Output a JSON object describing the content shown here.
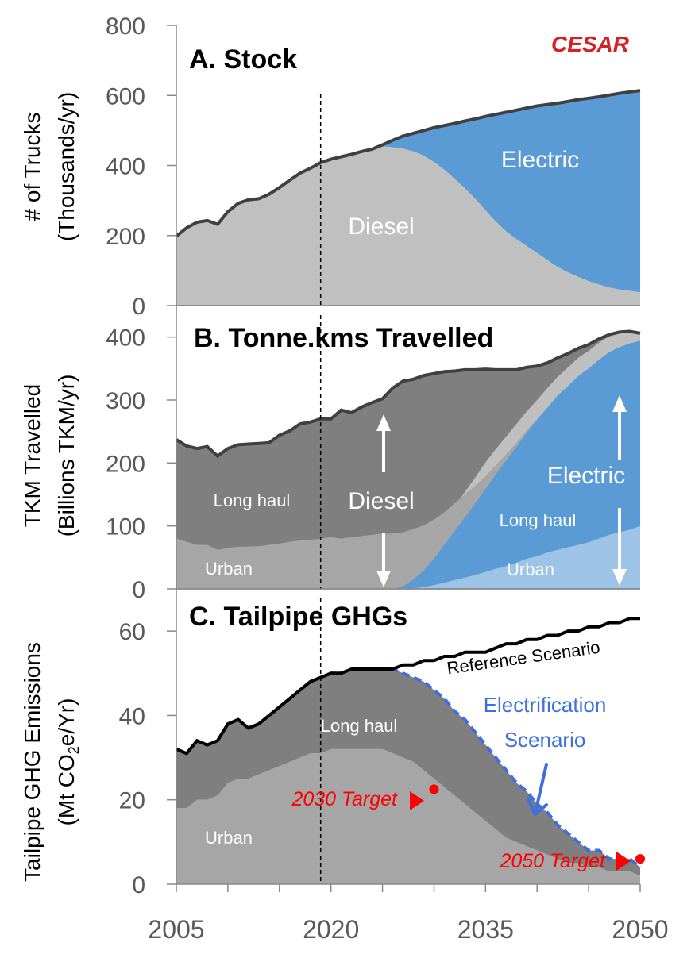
{
  "chart_data": [
    {
      "panel": "A",
      "type": "area",
      "title": "A. Stock",
      "ylabel_line1": "# of Trucks",
      "ylabel_line2": "(Thousands/yr)",
      "ylim": [
        0,
        800
      ],
      "yticks": [
        "0",
        "200",
        "400",
        "600",
        "800"
      ],
      "x": [
        2005,
        2006,
        2007,
        2008,
        2009,
        2010,
        2011,
        2012,
        2013,
        2014,
        2015,
        2016,
        2017,
        2018,
        2019,
        2020,
        2021,
        2022,
        2023,
        2024,
        2025,
        2026,
        2027,
        2028,
        2029,
        2030,
        2031,
        2032,
        2033,
        2034,
        2035,
        2036,
        2037,
        2038,
        2039,
        2040,
        2041,
        2042,
        2043,
        2044,
        2045,
        2046,
        2047,
        2048,
        2049,
        2050
      ],
      "series": [
        {
          "name": "Diesel",
          "color": "#c0c0c0",
          "values": [
            198,
            222,
            238,
            243,
            232,
            268,
            292,
            302,
            305,
            318,
            337,
            358,
            378,
            392,
            408,
            418,
            425,
            432,
            440,
            447,
            455,
            452,
            448,
            440,
            428,
            410,
            388,
            362,
            335,
            305,
            272,
            240,
            212,
            190,
            170,
            150,
            130,
            110,
            95,
            82,
            70,
            60,
            52,
            46,
            42,
            38
          ]
        },
        {
          "name": "Electric",
          "color": "#5b9bd5",
          "values": [
            0,
            0,
            0,
            0,
            0,
            0,
            0,
            0,
            0,
            0,
            0,
            0,
            0,
            0,
            0,
            0,
            0,
            0,
            0,
            0,
            4,
            20,
            36,
            52,
            72,
            98,
            126,
            158,
            192,
            228,
            268,
            306,
            340,
            368,
            394,
            420,
            444,
            468,
            488,
            506,
            522,
            536,
            549,
            560,
            568,
            576
          ]
        }
      ],
      "total_line_color": "#404040",
      "annotations": [
        "Diesel",
        "Electric"
      ]
    },
    {
      "panel": "B",
      "type": "area",
      "title": "B. Tonne.kms Travelled",
      "ylabel_line1": "TKM Travelled",
      "ylabel_line2": "(Billions TKM/yr)",
      "ylim": [
        0,
        450
      ],
      "yticks": [
        "0",
        "100",
        "200",
        "300",
        "400"
      ],
      "x": [
        2005,
        2006,
        2007,
        2008,
        2009,
        2010,
        2011,
        2012,
        2013,
        2014,
        2015,
        2016,
        2017,
        2018,
        2019,
        2020,
        2021,
        2022,
        2023,
        2024,
        2025,
        2026,
        2027,
        2028,
        2029,
        2030,
        2031,
        2032,
        2033,
        2034,
        2035,
        2036,
        2037,
        2038,
        2039,
        2040,
        2041,
        2042,
        2043,
        2044,
        2045,
        2046,
        2047,
        2048,
        2049,
        2050
      ],
      "series": [
        {
          "name": "Diesel Urban",
          "color": "#a6a6a6",
          "values": [
            80,
            75,
            70,
            70,
            62,
            65,
            67,
            67,
            68,
            70,
            72,
            75,
            77,
            78,
            80,
            82,
            80,
            82,
            84,
            86,
            88,
            88,
            86,
            80,
            72,
            62,
            52,
            44,
            36,
            28,
            20,
            14,
            10,
            6,
            4,
            2,
            0,
            0,
            0,
            0,
            0,
            0,
            0,
            0,
            0,
            0
          ]
        },
        {
          "name": "Diesel Long haul",
          "color": "#7f7f7f",
          "values": [
            157,
            152,
            153,
            156,
            149,
            158,
            162,
            163,
            163,
            162,
            172,
            176,
            185,
            187,
            190,
            188,
            204,
            198,
            205,
            210,
            214,
            226,
            230,
            220,
            212,
            200,
            187,
            172,
            158,
            143,
            128,
            112,
            96,
            80,
            66,
            52,
            40,
            30,
            22,
            15,
            10,
            6,
            3,
            2,
            1,
            0
          ]
        },
        {
          "name": "Electric Urban",
          "color": "#9dc3e6",
          "values": [
            0,
            0,
            0,
            0,
            0,
            0,
            0,
            0,
            0,
            0,
            0,
            0,
            0,
            0,
            0,
            0,
            0,
            0,
            0,
            0,
            0,
            0,
            0,
            1,
            3,
            6,
            10,
            14,
            18,
            22,
            27,
            32,
            36,
            42,
            48,
            52,
            58,
            62,
            66,
            70,
            74,
            80,
            86,
            90,
            94,
            100
          ]
        },
        {
          "name": "Electric Long haul",
          "color": "#5b9bd5",
          "values": [
            0,
            0,
            0,
            0,
            0,
            0,
            0,
            0,
            0,
            0,
            0,
            0,
            0,
            0,
            0,
            0,
            0,
            0,
            0,
            0,
            0,
            0,
            4,
            14,
            26,
            42,
            60,
            78,
            96,
            114,
            132,
            150,
            168,
            184,
            200,
            216,
            230,
            245,
            256,
            268,
            276,
            284,
            290,
            294,
            296,
            294
          ]
        },
        {
          "name": "Transition band",
          "color": "#bfbfbf",
          "values": [
            0,
            0,
            0,
            0,
            0,
            0,
            0,
            0,
            0,
            0,
            0,
            0,
            0,
            0,
            0,
            0,
            0,
            0,
            0,
            0,
            0,
            5,
            10,
            18,
            26,
            32,
            36,
            38,
            40,
            41,
            42,
            40,
            38,
            36,
            34,
            32,
            31,
            30,
            30,
            29,
            28,
            27,
            25,
            22,
            18,
            12
          ]
        }
      ],
      "totals": [
        237,
        227,
        223,
        226,
        211,
        223,
        229,
        230,
        231,
        232,
        244,
        251,
        262,
        265,
        270,
        270,
        284,
        280,
        289,
        296,
        302,
        319,
        330,
        333,
        339,
        342,
        345,
        346,
        348,
        348,
        349,
        348,
        348,
        348,
        352,
        354,
        359,
        367,
        374,
        382,
        388,
        397,
        404,
        408,
        409,
        406
      ],
      "total_line_color": "#404040",
      "annotations": [
        "Long haul",
        "Urban",
        "Diesel",
        "Electric",
        "Long haul",
        "Urban"
      ]
    },
    {
      "panel": "C",
      "type": "area",
      "title": "C. Tailpipe GHGs",
      "ylabel_line1": "Tailpipe GHG Emissions",
      "ylabel_line2_parts": [
        "(Mt CO",
        "2",
        "e/Yr)"
      ],
      "ylim": [
        0,
        70
      ],
      "yticks": [
        "0",
        "20",
        "40",
        "60"
      ],
      "xticks": [
        "2005",
        "2020",
        "2035",
        "2050"
      ],
      "x": [
        2005,
        2006,
        2007,
        2008,
        2009,
        2010,
        2011,
        2012,
        2013,
        2014,
        2015,
        2016,
        2017,
        2018,
        2019,
        2020,
        2021,
        2022,
        2023,
        2024,
        2025,
        2026,
        2027,
        2028,
        2029,
        2030,
        2031,
        2032,
        2033,
        2034,
        2035,
        2036,
        2037,
        2038,
        2039,
        2040,
        2041,
        2042,
        2043,
        2044,
        2045,
        2046,
        2047,
        2048,
        2049,
        2050
      ],
      "series": [
        {
          "name": "Urban",
          "color": "#a6a6a6",
          "values": [
            18,
            18,
            20,
            20,
            21,
            24,
            25,
            25,
            26,
            27,
            28,
            29,
            30,
            31,
            31,
            32,
            32,
            32,
            32,
            32,
            32,
            31,
            30,
            29,
            27,
            25,
            23,
            21,
            19,
            17,
            15,
            13,
            11,
            10,
            9,
            8,
            7,
            6,
            5,
            5,
            4,
            4,
            3,
            3,
            3,
            2
          ]
        },
        {
          "name": "Long haul",
          "color": "#7f7f7f",
          "values": [
            14,
            13,
            14,
            13,
            13,
            14,
            14,
            12,
            12,
            13,
            14,
            15,
            16,
            17,
            18,
            18,
            18,
            19,
            19,
            19,
            19,
            20,
            20,
            20,
            21,
            21,
            21,
            20,
            20,
            19,
            18,
            17,
            16,
            14,
            13,
            11,
            10,
            8,
            7,
            5,
            4,
            4,
            3,
            3,
            3,
            2
          ]
        }
      ],
      "reference_scenario": {
        "name": "Reference Scenario",
        "color": "#000000",
        "values": [
          32,
          31,
          34,
          33,
          34,
          38,
          39,
          37,
          38,
          40,
          42,
          44,
          46,
          48,
          49,
          50,
          50,
          51,
          51,
          51,
          51,
          51,
          52,
          52,
          53,
          53,
          54,
          54,
          55,
          55,
          55,
          56,
          57,
          57,
          58,
          58,
          59,
          59,
          60,
          60,
          61,
          61,
          62,
          62,
          63,
          63
        ]
      },
      "electrification_scenario": {
        "name": "Electrification Scenario",
        "color": "#3d6fe0",
        "dashed": true
      },
      "targets": [
        {
          "label": "2030 Target",
          "x": 2030,
          "value": 22.5,
          "color": "#ff0000"
        },
        {
          "label": "2050 Target",
          "x": 2050,
          "value": 6,
          "color": "#ff0000"
        }
      ],
      "annotations": [
        "Long haul",
        "Urban",
        "Reference Scenario",
        "Electrification",
        "Scenario"
      ]
    }
  ],
  "divider_year": 2019,
  "logo_text": "CESAR",
  "xlim": [
    2005,
    2050
  ]
}
